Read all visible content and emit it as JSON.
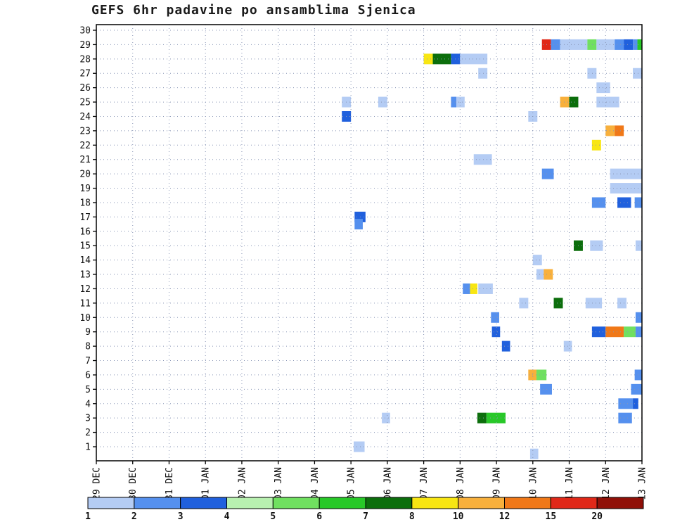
{
  "chart_data": {
    "type": "heatmap",
    "title": "GEFS 6hr padavine po ansamblima Sjenica",
    "xlabel": "",
    "ylabel": "",
    "x_range_steps": 60,
    "steps_per_day": 4,
    "x_ticks": [
      "29 DEC",
      "30 DEC",
      "31 DEC",
      "01 JAN",
      "02 JAN",
      "03 JAN",
      "04 JAN",
      "05 JAN",
      "06 JAN",
      "07 JAN",
      "08 JAN",
      "09 JAN",
      "10 JAN",
      "11 JAN",
      "12 JAN",
      "13 JAN"
    ],
    "y_ticks": [
      "1",
      "2",
      "3",
      "4",
      "5",
      "6",
      "7",
      "8",
      "9",
      "10",
      "11",
      "12",
      "13",
      "14",
      "15",
      "16",
      "17",
      "18",
      "19",
      "20",
      "21",
      "22",
      "23",
      "24",
      "25",
      "26",
      "27",
      "28",
      "29",
      "30"
    ],
    "legend": {
      "ticks": [
        "1",
        "2",
        "3",
        "4",
        "5",
        "6",
        "7",
        "8",
        "10",
        "12",
        "15",
        "20"
      ],
      "colors": [
        "#b4ccf4",
        "#5590ee",
        "#2060dd",
        "#b8f0b0",
        "#70e060",
        "#28c828",
        "#0c6e0c",
        "#f8e612",
        "#f8b03c",
        "#f07818",
        "#e02818",
        "#901008"
      ]
    },
    "cells": [
      {
        "m": 29,
        "s": 49,
        "w": 1,
        "c": 10
      },
      {
        "m": 29,
        "s": 50,
        "w": 1,
        "c": 1
      },
      {
        "m": 29,
        "s": 51,
        "w": 3,
        "c": 0
      },
      {
        "m": 29,
        "s": 54,
        "w": 1,
        "c": 4
      },
      {
        "m": 29,
        "s": 55,
        "w": 2,
        "c": 0
      },
      {
        "m": 29,
        "s": 57,
        "w": 1,
        "c": 1
      },
      {
        "m": 29,
        "s": 58,
        "w": 1,
        "c": 2
      },
      {
        "m": 29,
        "s": 59,
        "w": 0.5,
        "c": 1
      },
      {
        "m": 29,
        "s": 59.5,
        "w": 0.5,
        "c": 5
      },
      {
        "m": 28,
        "s": 36,
        "w": 1,
        "c": 7
      },
      {
        "m": 28,
        "s": 37,
        "w": 2,
        "c": 6
      },
      {
        "m": 28,
        "s": 39,
        "w": 1,
        "c": 2
      },
      {
        "m": 28,
        "s": 40,
        "w": 3,
        "c": 0
      },
      {
        "m": 27,
        "s": 42,
        "w": 1,
        "c": 0
      },
      {
        "m": 27,
        "s": 54,
        "w": 1,
        "c": 0
      },
      {
        "m": 27,
        "s": 59,
        "w": 1,
        "c": 0
      },
      {
        "m": 26,
        "s": 55,
        "w": 1.5,
        "c": 0
      },
      {
        "m": 25,
        "s": 27,
        "w": 1,
        "c": 0
      },
      {
        "m": 25,
        "s": 31,
        "w": 1,
        "c": 0
      },
      {
        "m": 25,
        "s": 39,
        "w": 0.6,
        "c": 1
      },
      {
        "m": 25,
        "s": 39.6,
        "w": 0.9,
        "c": 0
      },
      {
        "m": 25,
        "s": 51,
        "w": 1,
        "c": 8
      },
      {
        "m": 25,
        "s": 52,
        "w": 1,
        "c": 6
      },
      {
        "m": 25,
        "s": 55,
        "w": 2.5,
        "c": 0
      },
      {
        "m": 24,
        "s": 27,
        "w": 1,
        "c": 2
      },
      {
        "m": 24,
        "s": 47.5,
        "w": 1,
        "c": 0
      },
      {
        "m": 23,
        "s": 56,
        "w": 1,
        "c": 8
      },
      {
        "m": 23,
        "s": 57,
        "w": 1,
        "c": 9
      },
      {
        "m": 22,
        "s": 54.5,
        "w": 1,
        "c": 7
      },
      {
        "m": 21,
        "s": 41.5,
        "w": 2,
        "c": 0
      },
      {
        "m": 20,
        "s": 49,
        "w": 1.3,
        "c": 1
      },
      {
        "m": 20,
        "s": 56.5,
        "w": 3.5,
        "c": 0
      },
      {
        "m": 19,
        "s": 56.5,
        "w": 3.5,
        "c": 0
      },
      {
        "m": 18,
        "s": 54.5,
        "w": 1.5,
        "c": 1
      },
      {
        "m": 18,
        "s": 57.3,
        "w": 1.5,
        "c": 2
      },
      {
        "m": 18,
        "s": 59.2,
        "w": 0.8,
        "c": 1
      },
      {
        "m": 17,
        "s": 28.4,
        "w": 1.2,
        "c": 2
      },
      {
        "m": 16.5,
        "s": 28.4,
        "w": 0.9,
        "c": 1
      },
      {
        "m": 15,
        "s": 52.5,
        "w": 1,
        "c": 6
      },
      {
        "m": 15,
        "s": 54.3,
        "w": 1.4,
        "c": 0
      },
      {
        "m": 15,
        "s": 59.3,
        "w": 0.7,
        "c": 0
      },
      {
        "m": 14,
        "s": 48,
        "w": 1,
        "c": 0
      },
      {
        "m": 13,
        "s": 48.4,
        "w": 0.8,
        "c": 0
      },
      {
        "m": 13,
        "s": 49.2,
        "w": 1,
        "c": 8
      },
      {
        "m": 12,
        "s": 40.3,
        "w": 0.8,
        "c": 1
      },
      {
        "m": 12,
        "s": 41.1,
        "w": 0.8,
        "c": 7
      },
      {
        "m": 12,
        "s": 42,
        "w": 1.6,
        "c": 0
      },
      {
        "m": 11,
        "s": 46.5,
        "w": 1,
        "c": 0
      },
      {
        "m": 11,
        "s": 50.3,
        "w": 1,
        "c": 6
      },
      {
        "m": 11,
        "s": 53.8,
        "w": 1.8,
        "c": 0
      },
      {
        "m": 11,
        "s": 57.3,
        "w": 1,
        "c": 0
      },
      {
        "m": 10,
        "s": 43.4,
        "w": 0.9,
        "c": 1
      },
      {
        "m": 10,
        "s": 59.3,
        "w": 0.7,
        "c": 1
      },
      {
        "m": 9,
        "s": 43.5,
        "w": 0.9,
        "c": 2
      },
      {
        "m": 9,
        "s": 54.5,
        "w": 1.5,
        "c": 2
      },
      {
        "m": 9,
        "s": 56,
        "w": 2,
        "c": 9
      },
      {
        "m": 9,
        "s": 58,
        "w": 1.3,
        "c": 4
      },
      {
        "m": 9,
        "s": 59.3,
        "w": 0.7,
        "c": 1
      },
      {
        "m": 8,
        "s": 44.6,
        "w": 0.9,
        "c": 2
      },
      {
        "m": 8,
        "s": 51.4,
        "w": 0.9,
        "c": 0
      },
      {
        "m": 6,
        "s": 47.5,
        "w": 0.9,
        "c": 8
      },
      {
        "m": 6,
        "s": 48.4,
        "w": 1.1,
        "c": 4
      },
      {
        "m": 6,
        "s": 59.2,
        "w": 0.8,
        "c": 1
      },
      {
        "m": 5,
        "s": 48.8,
        "w": 1.3,
        "c": 1
      },
      {
        "m": 5,
        "s": 58.8,
        "w": 1.2,
        "c": 1
      },
      {
        "m": 4,
        "s": 57.4,
        "w": 1.6,
        "c": 1
      },
      {
        "m": 4,
        "s": 59,
        "w": 0.6,
        "c": 2
      },
      {
        "m": 3,
        "s": 31.4,
        "w": 0.9,
        "c": 0
      },
      {
        "m": 3,
        "s": 41.9,
        "w": 1,
        "c": 6
      },
      {
        "m": 3,
        "s": 42.9,
        "w": 2.1,
        "c": 5
      },
      {
        "m": 3,
        "s": 57.4,
        "w": 1.5,
        "c": 1
      },
      {
        "m": 1,
        "s": 28.3,
        "w": 1.2,
        "c": 0
      },
      {
        "m": 0.5,
        "s": 47.7,
        "w": 0.9,
        "c": 0
      }
    ]
  }
}
